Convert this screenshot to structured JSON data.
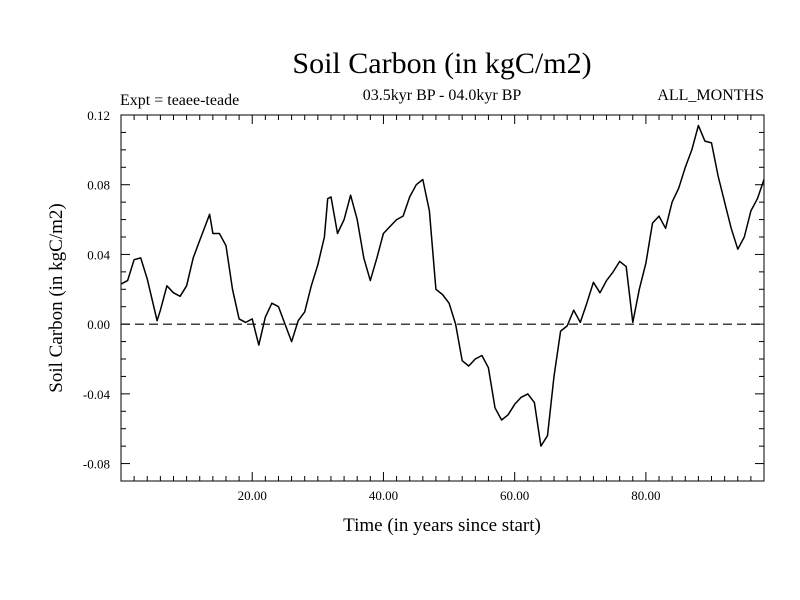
{
  "chart_data": {
    "type": "line",
    "title": "Soil Carbon (in kgC/m2)",
    "subtitle": "03.5kyr BP - 04.0kyr BP",
    "experiment_label": "Expt = teaee-teade",
    "months_label": "ALL_MONTHS",
    "xlabel": "Time (in years since start)",
    "ylabel": "Soil Carbon (in kgC/m2)",
    "xlim": [
      0,
      98
    ],
    "ylim": [
      -0.09,
      0.12
    ],
    "x_ticks": [
      20,
      40,
      60,
      80
    ],
    "x_tick_labels": [
      "20.00",
      "40.00",
      "60.00",
      "80.00"
    ],
    "y_ticks": [
      -0.08,
      -0.04,
      0.0,
      0.04,
      0.08,
      0.12
    ],
    "y_tick_labels": [
      "-0.08",
      "-0.04",
      "0.00",
      "0.04",
      "0.08",
      "0.12"
    ],
    "zero_line": {
      "value": 0.0,
      "style": "dashed"
    },
    "line_color": "#000000",
    "series": [
      {
        "name": "Soil Carbon",
        "x": [
          0,
          1,
          2,
          3,
          4,
          5,
          5.5,
          6,
          7,
          8,
          9,
          10,
          11,
          12,
          13,
          13.5,
          14,
          15,
          16,
          17,
          18,
          19,
          20,
          21,
          22,
          23,
          24,
          25,
          26,
          27,
          28,
          29,
          30,
          31,
          31.5,
          32,
          33,
          34,
          35,
          36,
          37,
          38,
          39,
          40,
          41,
          42,
          43,
          44,
          45,
          46,
          47,
          48,
          49,
          50,
          51,
          52,
          53,
          54,
          55,
          56,
          57,
          58,
          59,
          60,
          61,
          62,
          63,
          64,
          65,
          66,
          67,
          68,
          69,
          70,
          71,
          72,
          73,
          74,
          75,
          76,
          77,
          78,
          79,
          80,
          81,
          82,
          83,
          84,
          85,
          86,
          87,
          88,
          89,
          90,
          91,
          92,
          93,
          94,
          95,
          96,
          97,
          98
        ],
        "values": [
          0.023,
          0.025,
          0.037,
          0.038,
          0.026,
          0.01,
          0.002,
          0.008,
          0.022,
          0.018,
          0.016,
          0.022,
          0.038,
          0.048,
          0.058,
          0.063,
          0.052,
          0.052,
          0.045,
          0.02,
          0.003,
          0.001,
          0.003,
          -0.012,
          0.004,
          0.012,
          0.01,
          0.0,
          -0.01,
          0.002,
          0.007,
          0.022,
          0.034,
          0.05,
          0.072,
          0.073,
          0.052,
          0.06,
          0.074,
          0.06,
          0.038,
          0.025,
          0.038,
          0.052,
          0.056,
          0.06,
          0.062,
          0.073,
          0.08,
          0.083,
          0.065,
          0.02,
          0.017,
          0.012,
          0.0,
          -0.021,
          -0.024,
          -0.02,
          -0.018,
          -0.025,
          -0.048,
          -0.055,
          -0.052,
          -0.046,
          -0.042,
          -0.04,
          -0.045,
          -0.07,
          -0.064,
          -0.03,
          -0.004,
          -0.001,
          0.008,
          0.001,
          0.012,
          0.024,
          0.018,
          0.025,
          0.03,
          0.036,
          0.033,
          0.001,
          0.02,
          0.035,
          0.058,
          0.062,
          0.055,
          0.07,
          0.078,
          0.09,
          0.1,
          0.114,
          0.105,
          0.104,
          0.085,
          0.07,
          0.055,
          0.043,
          0.05,
          0.065,
          0.072,
          0.083
        ]
      }
    ]
  }
}
